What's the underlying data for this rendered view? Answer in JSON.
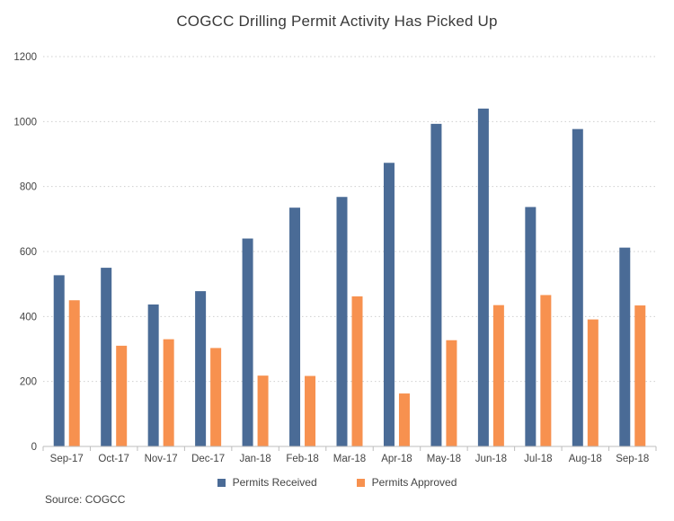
{
  "colors": {
    "received": "#4a6b96",
    "approved": "#f7914f",
    "grid": "#cfcfcf"
  },
  "source": "Source: COGCC",
  "chart_data": {
    "type": "bar",
    "title": "COGCC Drilling Permit Activity Has Picked Up",
    "xlabel": "",
    "ylabel": "",
    "ylim": [
      0,
      1200
    ],
    "yticks": [
      0,
      200,
      400,
      600,
      800,
      1000,
      1200
    ],
    "grid": true,
    "legend_position": "bottom-center",
    "categories": [
      "Sep-17",
      "Oct-17",
      "Nov-17",
      "Dec-17",
      "Jan-18",
      "Feb-18",
      "Mar-18",
      "Apr-18",
      "May-18",
      "Jun-18",
      "Jul-18",
      "Aug-18",
      "Sep-18"
    ],
    "series": [
      {
        "name": "Permits Received",
        "values": [
          527,
          550,
          437,
          478,
          640,
          735,
          768,
          873,
          993,
          1040,
          737,
          977,
          612
        ]
      },
      {
        "name": "Permits Approved",
        "values": [
          450,
          310,
          330,
          303,
          218,
          217,
          462,
          163,
          327,
          435,
          466,
          391,
          434
        ]
      }
    ]
  }
}
